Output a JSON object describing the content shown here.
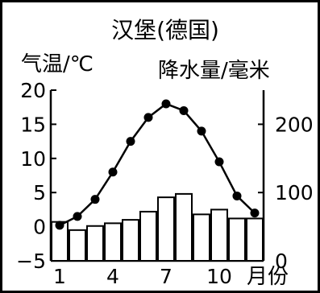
{
  "chart_data": {
    "type": "bar+line",
    "title": "汉堡(德国)",
    "left_axis_label": "气温/℃",
    "right_axis_label": "降水量/毫米",
    "x_axis_unit": "月份",
    "x_ticks": [
      "1",
      "4",
      "7",
      "10"
    ],
    "months": [
      1,
      2,
      3,
      4,
      5,
      6,
      7,
      8,
      9,
      10,
      11,
      12
    ],
    "left_ylim": [
      -5,
      20
    ],
    "left_ticks": [
      -5,
      0,
      5,
      10,
      15,
      20
    ],
    "right_ylim": [
      0,
      250
    ],
    "right_ticks": [
      0,
      100,
      200
    ],
    "temperature": [
      0.2,
      1.5,
      4,
      8,
      12.5,
      16,
      18,
      17,
      14,
      9.5,
      4.5,
      2
    ],
    "precipitation": [
      57,
      45,
      51,
      55,
      60,
      72,
      93,
      98,
      68,
      75,
      62,
      62
    ],
    "bar_color": "#ffffff",
    "line_color": "#000000",
    "grid": false
  }
}
